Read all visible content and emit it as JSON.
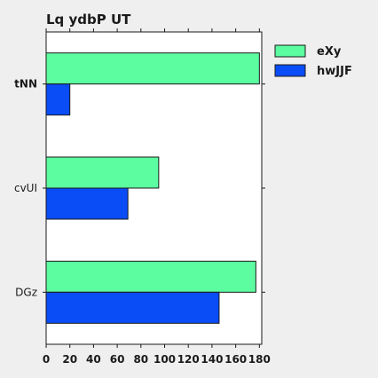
{
  "chart_data": {
    "type": "bar",
    "orientation": "horizontal",
    "title": "Lq ydbP UT",
    "xlabel": "",
    "ylabel": "",
    "categories": [
      "tNN",
      "cvUI",
      "DGz"
    ],
    "series": [
      {
        "name": "eXy",
        "values": [
          180,
          95,
          177
        ],
        "color": "#5cfca0"
      },
      {
        "name": "hwJJF",
        "values": [
          20,
          69,
          146
        ],
        "color": "#0a4cf5"
      }
    ],
    "xlim": [
      0,
      182
    ],
    "xticks": [
      "0",
      "20",
      "40",
      "60",
      "80",
      "100",
      "120",
      "140",
      "160",
      "180"
    ],
    "grid": false,
    "legend_position": "top-right"
  }
}
